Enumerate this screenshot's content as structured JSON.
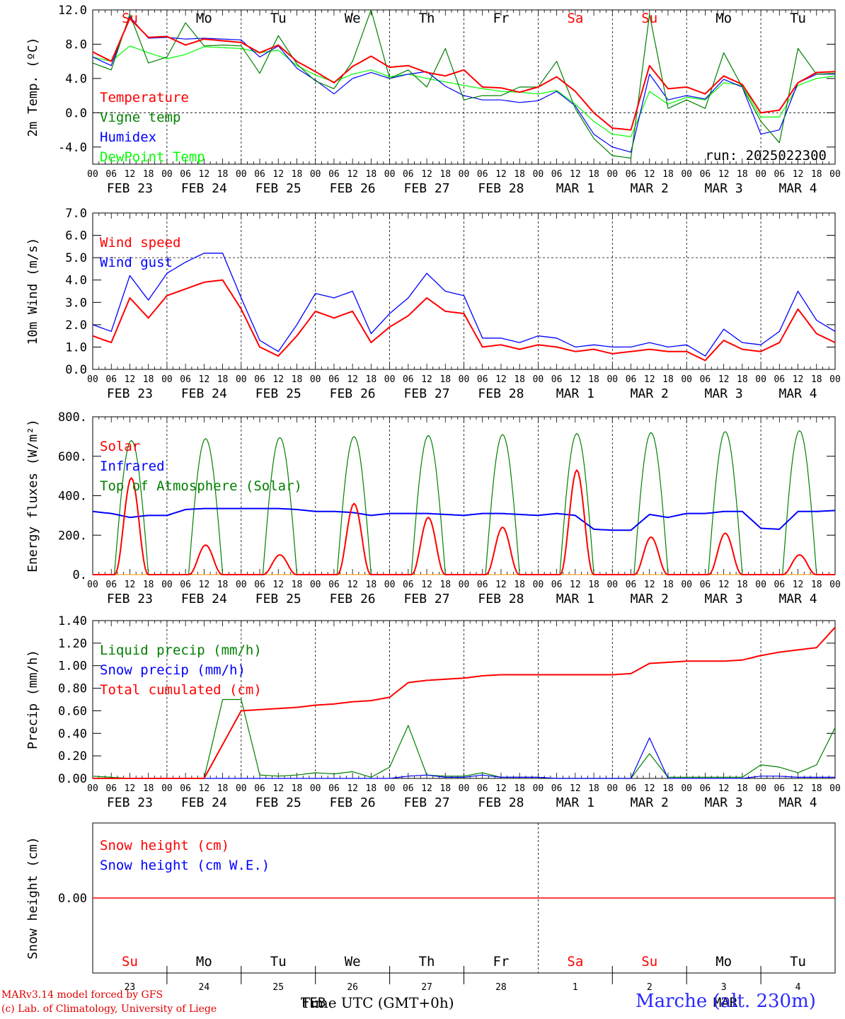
{
  "chart_data": [
    {
      "type": "line",
      "id": "temperature",
      "ylabel": "2m Temp. (ºC)",
      "ylim": [
        -6,
        12
      ],
      "yticks": [
        "12.0",
        "8.0",
        "4.0",
        "0.0",
        "-4.0"
      ],
      "ytick_values": [
        12,
        8,
        4,
        0,
        -4
      ],
      "zero_dashed_line": true,
      "run_label": "run: 2025022300",
      "days": [
        "Su",
        "Mo",
        "Tu",
        "We",
        "Th",
        "Fr",
        "Sa",
        "Su",
        "Mo",
        "Tu"
      ],
      "weekend_days": [
        0,
        6,
        7
      ],
      "legend": [
        "Temperature",
        "Vigne temp",
        "Humidex",
        "DewPoint Temp"
      ],
      "legend_colors": [
        "#ff0000",
        "#008000",
        "#0000ff",
        "#00ff00"
      ],
      "x_hours": [
        0,
        6,
        12,
        18,
        24,
        30,
        36,
        42,
        48,
        54,
        60,
        66,
        72,
        78,
        84,
        90,
        96,
        102,
        108,
        114,
        120,
        126,
        132,
        138,
        144,
        150,
        156,
        162,
        168,
        174,
        180,
        186,
        192,
        198,
        204,
        210,
        216,
        222,
        228,
        234,
        240
      ],
      "series": [
        {
          "name": "Temperature",
          "color": "#ff0000",
          "values": [
            7.1,
            6.0,
            11.0,
            8.8,
            8.9,
            7.9,
            8.6,
            8.4,
            8.2,
            7.0,
            7.9,
            6.0,
            4.8,
            3.5,
            5.4,
            6.6,
            5.3,
            5.5,
            4.7,
            4.3,
            5.0,
            3.0,
            2.9,
            2.4,
            3.0,
            4.2,
            2.5,
            0.0,
            -1.8,
            -2.0,
            5.5,
            2.8,
            3.0,
            2.2,
            4.3,
            3.3,
            0.0,
            0.3,
            3.5,
            4.7,
            4.8
          ]
        },
        {
          "name": "Vigne temp",
          "color": "#008000",
          "values": [
            5.8,
            5.0,
            11.5,
            5.8,
            6.5,
            10.5,
            7.8,
            7.9,
            7.8,
            4.6,
            9.0,
            5.7,
            3.7,
            2.8,
            6.0,
            12.0,
            4.0,
            5.0,
            3.0,
            7.5,
            1.5,
            2.0,
            2.0,
            3.0,
            3.0,
            6.0,
            0.5,
            -3.0,
            -5.0,
            -5.3,
            11.5,
            0.5,
            1.5,
            0.5,
            7.0,
            3.0,
            -1.0,
            -3.5,
            7.5,
            4.5,
            4.6
          ]
        },
        {
          "name": "Humidex",
          "color": "#0000ff",
          "values": [
            6.5,
            5.5,
            11.2,
            8.7,
            8.8,
            8.6,
            8.7,
            8.6,
            8.5,
            6.5,
            7.8,
            5.2,
            3.8,
            2.2,
            4.0,
            4.7,
            4.0,
            4.5,
            4.8,
            3.1,
            2.0,
            1.5,
            1.5,
            1.2,
            1.4,
            2.5,
            0.8,
            -2.5,
            -4.0,
            -4.6,
            4.5,
            1.5,
            2.0,
            1.6,
            3.9,
            3.0,
            -2.5,
            -2.0,
            3.5,
            4.5,
            4.5
          ]
        },
        {
          "name": "DewPoint Temp",
          "color": "#00ff00",
          "values": [
            6.5,
            6.0,
            7.8,
            7.0,
            6.3,
            6.8,
            7.7,
            7.6,
            7.5,
            7.0,
            7.3,
            5.5,
            4.4,
            3.6,
            4.5,
            5.0,
            4.2,
            4.5,
            4.0,
            3.6,
            3.2,
            2.8,
            2.5,
            2.4,
            2.2,
            2.6,
            1.0,
            -1.0,
            -2.5,
            -2.8,
            2.5,
            1.0,
            1.8,
            1.5,
            3.5,
            3.2,
            -0.5,
            -0.5,
            3.2,
            4.0,
            4.3
          ]
        }
      ]
    },
    {
      "type": "line",
      "id": "wind",
      "ylabel": "10m Wind (m/s)",
      "ylim": [
        0,
        7
      ],
      "yticks": [
        "7.0",
        "6.0",
        "5.0",
        "4.0",
        "3.0",
        "2.0",
        "1.0",
        "0.0"
      ],
      "ytick_values": [
        7,
        6,
        5,
        4,
        3,
        2,
        1,
        0
      ],
      "dashed_level": 5,
      "legend": [
        "Wind speed",
        "Wind gust"
      ],
      "legend_colors": [
        "#ff0000",
        "#0000ff"
      ],
      "x_hours": [
        0,
        6,
        12,
        18,
        24,
        30,
        36,
        42,
        48,
        54,
        60,
        66,
        72,
        78,
        84,
        90,
        96,
        102,
        108,
        114,
        120,
        126,
        132,
        138,
        144,
        150,
        156,
        162,
        168,
        174,
        180,
        186,
        192,
        198,
        204,
        210,
        216,
        222,
        228,
        234,
        240
      ],
      "series": [
        {
          "name": "Wind speed",
          "color": "#ff0000",
          "values": [
            1.5,
            1.2,
            3.2,
            2.3,
            3.3,
            3.6,
            3.9,
            4.0,
            2.7,
            1.0,
            0.6,
            1.5,
            2.6,
            2.3,
            2.6,
            1.2,
            1.9,
            2.4,
            3.2,
            2.6,
            2.5,
            1.0,
            1.1,
            0.9,
            1.1,
            1.0,
            0.8,
            0.9,
            0.7,
            0.8,
            0.9,
            0.8,
            0.8,
            0.4,
            1.3,
            0.9,
            0.8,
            1.2,
            2.7,
            1.6,
            1.2
          ]
        },
        {
          "name": "Wind gust",
          "color": "#0000ff",
          "values": [
            2.0,
            1.7,
            4.2,
            3.1,
            4.3,
            4.8,
            5.2,
            5.2,
            3.2,
            1.3,
            0.8,
            2.0,
            3.4,
            3.2,
            3.5,
            1.6,
            2.5,
            3.2,
            4.3,
            3.5,
            3.3,
            1.4,
            1.4,
            1.2,
            1.5,
            1.4,
            1.0,
            1.1,
            1.0,
            1.0,
            1.2,
            1.0,
            1.1,
            0.6,
            1.8,
            1.2,
            1.1,
            1.7,
            3.5,
            2.2,
            1.7
          ]
        }
      ]
    },
    {
      "type": "line",
      "id": "energy",
      "ylabel": "Energy fluxes (W/m²)",
      "ylim": [
        0,
        800
      ],
      "yticks": [
        "800.",
        "600.",
        "400.",
        "200.",
        "0."
      ],
      "ytick_values": [
        800,
        600,
        400,
        200,
        0
      ],
      "legend": [
        "Solar",
        "Infrared",
        "Top of Atmosphere (Solar)"
      ],
      "legend_colors": [
        "#ff0000",
        "#0000ff",
        "#008000"
      ],
      "infrared_x_hours": [
        0,
        6,
        12,
        18,
        24,
        30,
        36,
        42,
        48,
        54,
        60,
        66,
        72,
        78,
        84,
        90,
        96,
        102,
        108,
        114,
        120,
        126,
        132,
        138,
        144,
        150,
        156,
        162,
        168,
        174,
        180,
        186,
        192,
        198,
        204,
        210,
        216,
        222,
        228,
        234,
        240
      ],
      "infrared_values": [
        320,
        310,
        290,
        300,
        300,
        330,
        335,
        335,
        335,
        335,
        335,
        330,
        320,
        320,
        315,
        300,
        310,
        310,
        310,
        305,
        300,
        310,
        310,
        305,
        300,
        310,
        300,
        230,
        225,
        225,
        305,
        290,
        310,
        310,
        320,
        320,
        235,
        230,
        320,
        320,
        325
      ],
      "toa_peaks": [
        680,
        690,
        695,
        700,
        705,
        710,
        715,
        720,
        725,
        730
      ],
      "solar_peaks": [
        490,
        150,
        100,
        360,
        290,
        240,
        530,
        190,
        210,
        100
      ],
      "day_window_hours": [
        7,
        18
      ]
    },
    {
      "type": "line",
      "id": "precip",
      "ylabel": "Precip (mm/h)",
      "ylim": [
        0,
        1.4
      ],
      "yticks": [
        "1.40",
        "1.20",
        "1.00",
        "0.80",
        "0.60",
        "0.40",
        "0.20",
        "0.00"
      ],
      "ytick_values": [
        1.4,
        1.2,
        1.0,
        0.8,
        0.6,
        0.4,
        0.2,
        0.0
      ],
      "legend": [
        "Liquid precip (mm/h)",
        "Snow precip (mm/h)",
        "Total cumulated (cm)"
      ],
      "legend_colors": [
        "#008000",
        "#0000ff",
        "#ff0000"
      ],
      "x_hours": [
        0,
        6,
        12,
        18,
        24,
        30,
        36,
        42,
        48,
        54,
        60,
        66,
        72,
        78,
        84,
        90,
        96,
        102,
        108,
        114,
        120,
        126,
        132,
        138,
        144,
        150,
        156,
        162,
        168,
        174,
        180,
        186,
        192,
        198,
        204,
        210,
        216,
        222,
        228,
        234,
        240
      ],
      "series": [
        {
          "name": "Total cumulated (cm)",
          "color": "#ff0000",
          "values": [
            0,
            0,
            0,
            0,
            0,
            0,
            0,
            0.3,
            0.6,
            0.61,
            0.62,
            0.63,
            0.65,
            0.66,
            0.68,
            0.69,
            0.72,
            0.85,
            0.87,
            0.88,
            0.89,
            0.91,
            0.92,
            0.92,
            0.92,
            0.92,
            0.92,
            0.92,
            0.92,
            0.93,
            1.02,
            1.03,
            1.04,
            1.04,
            1.04,
            1.05,
            1.09,
            1.12,
            1.14,
            1.16,
            1.34
          ]
        },
        {
          "name": "Liquid precip (mm/h)",
          "color": "#008000",
          "values": [
            0.02,
            0.01,
            0,
            0,
            0,
            0,
            0,
            0.7,
            0.7,
            0.03,
            0.02,
            0.03,
            0.05,
            0.04,
            0.06,
            0.01,
            0.1,
            0.47,
            0.03,
            0.02,
            0.02,
            0.05,
            0.01,
            0.01,
            0.01,
            0,
            0,
            0,
            0,
            0,
            0.22,
            0.01,
            0.01,
            0.01,
            0.01,
            0.01,
            0.12,
            0.1,
            0.05,
            0.12,
            0.45
          ]
        },
        {
          "name": "Snow precip (mm/h)",
          "color": "#0000ff",
          "values": [
            0,
            0,
            0,
            0,
            0,
            0,
            0,
            0,
            0,
            0,
            0,
            0,
            0,
            0,
            0,
            0,
            0,
            0.02,
            0.03,
            0.01,
            0.01,
            0.03,
            0.01,
            0.01,
            0.01,
            0,
            0,
            0,
            0,
            0,
            0.36,
            0,
            0,
            0,
            0,
            0,
            0.02,
            0.02,
            0.01,
            0.01,
            0.01
          ]
        }
      ]
    },
    {
      "type": "line",
      "id": "snow",
      "ylabel": "Snow height (cm)",
      "yticks": [
        "0.00"
      ],
      "legend": [
        "Snow height (cm)",
        "Snow height (cm W.E.)"
      ],
      "legend_colors": [
        "#ff0000",
        "#0000ff"
      ],
      "series": [
        {
          "name": "Snow height (cm)",
          "color": "#ff0000",
          "values": [
            0,
            0
          ]
        }
      ],
      "day_labels": [
        "Su",
        "Mo",
        "Tu",
        "We",
        "Th",
        "Fr",
        "Sa",
        "Su",
        "Mo",
        "Tu"
      ],
      "date_numbers": [
        "23",
        "24",
        "25",
        "26",
        "27",
        "28",
        "1",
        "2",
        "3",
        "4"
      ],
      "month_labels": [
        "FEB",
        "MAR"
      ]
    }
  ],
  "x_axis": {
    "hour_ticks": [
      "00",
      "06",
      "12",
      "18"
    ],
    "date_labels": [
      "FEB 23",
      "FEB 24",
      "FEB 25",
      "FEB 26",
      "FEB 27",
      "FEB 28",
      "MAR  1",
      "MAR  2",
      "MAR  3",
      "MAR  4"
    ],
    "xlabel": "Time UTC (GMT+0h)"
  },
  "footer": {
    "credit_line1": "MARv3.14 model forced by GFS",
    "credit_line2": "(c) Lab. of Climatology, University of Liege",
    "station": "Marche (alt. 230m)"
  }
}
